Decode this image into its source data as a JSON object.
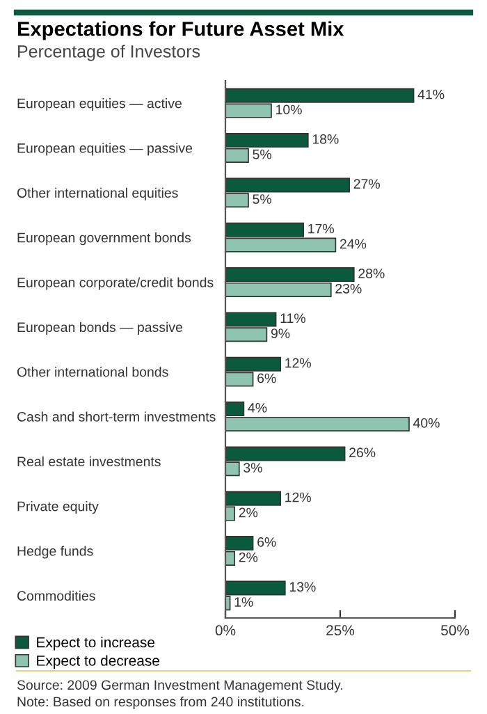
{
  "chart_data": {
    "type": "bar",
    "orientation": "horizontal",
    "title": "Expectations for Future Asset Mix",
    "subtitle": "Percentage of Investors",
    "categories": [
      "European equities — active",
      "European equities — passive",
      "Other international equities",
      "European government bonds",
      "European corporate/credit bonds",
      "European bonds — passive",
      "Other international bonds",
      "Cash and short-term investments",
      "Real estate investments",
      "Private equity",
      "Hedge funds",
      "Commodities"
    ],
    "series": [
      {
        "name": "Expect to increase",
        "color": "#0b5a3e",
        "values": [
          41,
          18,
          27,
          17,
          28,
          11,
          12,
          4,
          26,
          12,
          6,
          13
        ],
        "value_labels": [
          "41%",
          "18%",
          "27%",
          "17%",
          "28%",
          "11%",
          "12%",
          "4%",
          "26%",
          "12%",
          "6%",
          "13%"
        ]
      },
      {
        "name": "Expect to decrease",
        "color": "#8fc4b0",
        "values": [
          10,
          5,
          5,
          24,
          23,
          9,
          6,
          40,
          3,
          2,
          2,
          1
        ],
        "value_labels": [
          "10%",
          "5%",
          "5%",
          "24%",
          "23%",
          "9%",
          "6%",
          "40%",
          "3%",
          "2%",
          "2%",
          "1%"
        ]
      }
    ],
    "xlim": [
      0,
      50
    ],
    "xticks": [
      {
        "value": 0,
        "label": "0%"
      },
      {
        "value": 25,
        "label": "25%"
      },
      {
        "value": 50,
        "label": "50%"
      }
    ],
    "legend": "bottom left",
    "grid": false,
    "annotations": [
      "Source: 2009 German Investment Management Study.",
      "Note: Based on responses from 240 institutions."
    ]
  }
}
